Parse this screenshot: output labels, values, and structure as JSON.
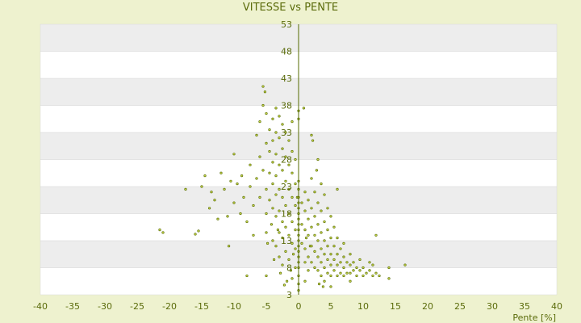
{
  "chart_data": {
    "type": "scatter",
    "title": "VITESSE vs PENTE",
    "xlabel": "Pente [%]",
    "ylabel": "",
    "xlim": [
      -40,
      40
    ],
    "ylim": [
      3,
      53
    ],
    "x_ticks": [
      -40,
      -35,
      -30,
      -25,
      -20,
      -15,
      -10,
      -5,
      0,
      5,
      10,
      15,
      20,
      25,
      30,
      35,
      40
    ],
    "y_ticks": [
      3,
      8,
      13,
      18,
      23,
      28,
      33,
      38,
      43,
      48,
      53
    ],
    "grid": "horizontal bands",
    "legend": "none",
    "series": [
      {
        "values_xy": [
          [
            -21.5,
            15.0
          ],
          [
            -21.0,
            14.5
          ],
          [
            -17.5,
            22.5
          ],
          [
            -16.0,
            14.2
          ],
          [
            -15.5,
            14.8
          ],
          [
            -15.0,
            23.0
          ],
          [
            -14.5,
            25.0
          ],
          [
            -13.8,
            19.0
          ],
          [
            -13.5,
            22.0
          ],
          [
            -13.0,
            20.5
          ],
          [
            -12.5,
            17.0
          ],
          [
            -12.0,
            25.5
          ],
          [
            -11.5,
            22.5
          ],
          [
            -11.0,
            17.5
          ],
          [
            -10.8,
            12.0
          ],
          [
            -10.5,
            24.0
          ],
          [
            -10.0,
            29.0
          ],
          [
            -10.0,
            20.0
          ],
          [
            -9.5,
            23.5
          ],
          [
            -9.0,
            18.0
          ],
          [
            -8.8,
            25.0
          ],
          [
            -8.5,
            21.0
          ],
          [
            -8.0,
            6.5
          ],
          [
            -8.0,
            16.5
          ],
          [
            -7.5,
            27.0
          ],
          [
            -7.5,
            23.0
          ],
          [
            -7.0,
            19.5
          ],
          [
            -7.0,
            14.0
          ],
          [
            -6.5,
            32.5
          ],
          [
            -6.5,
            24.5
          ],
          [
            -6.0,
            35.0
          ],
          [
            -6.0,
            28.5
          ],
          [
            -6.0,
            21.0
          ],
          [
            -5.5,
            41.5
          ],
          [
            -5.5,
            38.0
          ],
          [
            -5.5,
            26.0
          ],
          [
            -5.2,
            40.5
          ],
          [
            -5.0,
            36.5
          ],
          [
            -5.0,
            31.0
          ],
          [
            -5.0,
            22.5
          ],
          [
            -5.0,
            18.0
          ],
          [
            -5.0,
            14.5
          ],
          [
            -5.0,
            6.5
          ],
          [
            -4.8,
            12.5
          ],
          [
            -4.5,
            33.5
          ],
          [
            -4.5,
            29.5
          ],
          [
            -4.5,
            25.5
          ],
          [
            -4.5,
            20.5
          ],
          [
            -4.2,
            16.0
          ],
          [
            -4.0,
            35.5
          ],
          [
            -4.0,
            31.5
          ],
          [
            -4.0,
            27.5
          ],
          [
            -4.0,
            23.5
          ],
          [
            -4.0,
            19.0
          ],
          [
            -4.0,
            13.0
          ],
          [
            -3.8,
            9.5
          ],
          [
            -3.5,
            37.5
          ],
          [
            -3.5,
            33.0
          ],
          [
            -3.5,
            29.0
          ],
          [
            -3.5,
            25.0
          ],
          [
            -3.5,
            21.5
          ],
          [
            -3.5,
            17.5
          ],
          [
            -3.5,
            12.0
          ],
          [
            -3.2,
            15.0
          ],
          [
            -3.0,
            36.0
          ],
          [
            -3.0,
            32.0
          ],
          [
            -3.0,
            27.0
          ],
          [
            -3.0,
            22.5
          ],
          [
            -3.0,
            18.5
          ],
          [
            -3.0,
            14.5
          ],
          [
            -3.0,
            10.0
          ],
          [
            -2.8,
            7.0
          ],
          [
            -2.5,
            34.5
          ],
          [
            -2.5,
            30.0
          ],
          [
            -2.5,
            26.0
          ],
          [
            -2.5,
            21.0
          ],
          [
            -2.5,
            16.5
          ],
          [
            -2.5,
            13.5
          ],
          [
            -2.5,
            8.5
          ],
          [
            -2.2,
            4.8
          ],
          [
            -2.0,
            33.0
          ],
          [
            -2.0,
            28.5
          ],
          [
            -2.0,
            24.0
          ],
          [
            -2.0,
            19.5
          ],
          [
            -2.0,
            15.5
          ],
          [
            -2.0,
            11.0
          ],
          [
            -1.8,
            5.5
          ],
          [
            -1.5,
            31.5
          ],
          [
            -1.5,
            27.0
          ],
          [
            -1.5,
            22.5
          ],
          [
            -1.5,
            18.0
          ],
          [
            -1.5,
            14.0
          ],
          [
            -1.5,
            9.5
          ],
          [
            -1.2,
            7.5
          ],
          [
            -1.0,
            35.0
          ],
          [
            -1.0,
            29.5
          ],
          [
            -1.0,
            25.5
          ],
          [
            -1.0,
            21.0
          ],
          [
            -1.0,
            16.5
          ],
          [
            -1.0,
            12.5
          ],
          [
            -1.0,
            6.0
          ],
          [
            -0.8,
            10.5
          ],
          [
            -0.5,
            28.0
          ],
          [
            -0.5,
            23.5
          ],
          [
            -0.5,
            19.5
          ],
          [
            -0.5,
            15.0
          ],
          [
            -0.5,
            11.5
          ],
          [
            -0.5,
            8.0
          ],
          [
            -0.2,
            21.0
          ],
          [
            0.0,
            37.0
          ],
          [
            0.0,
            35.5
          ],
          [
            0.0,
            24.0
          ],
          [
            0.0,
            22.5
          ],
          [
            0.0,
            21.0
          ],
          [
            0.0,
            20.0
          ],
          [
            0.0,
            19.0
          ],
          [
            0.0,
            18.0
          ],
          [
            0.0,
            17.0
          ],
          [
            0.0,
            16.0
          ],
          [
            0.0,
            15.0
          ],
          [
            0.0,
            14.0
          ],
          [
            0.0,
            13.0
          ],
          [
            0.0,
            12.0
          ],
          [
            0.0,
            11.0
          ],
          [
            0.0,
            10.0
          ],
          [
            0.0,
            9.0
          ],
          [
            0.0,
            8.0
          ],
          [
            0.0,
            6.5
          ],
          [
            0.0,
            5.0
          ],
          [
            0.0,
            3.8
          ],
          [
            0.5,
            20.0
          ],
          [
            0.5,
            16.0
          ],
          [
            0.5,
            12.5
          ],
          [
            0.8,
            37.5
          ],
          [
            1.0,
            22.0
          ],
          [
            1.0,
            18.5
          ],
          [
            1.0,
            15.0
          ],
          [
            1.0,
            11.5
          ],
          [
            1.0,
            9.0
          ],
          [
            1.0,
            5.5
          ],
          [
            1.2,
            13.5
          ],
          [
            1.5,
            20.5
          ],
          [
            1.5,
            17.0
          ],
          [
            1.5,
            14.0
          ],
          [
            1.5,
            10.0
          ],
          [
            1.5,
            7.5
          ],
          [
            1.8,
            12.0
          ],
          [
            2.0,
            32.5
          ],
          [
            2.0,
            24.5
          ],
          [
            2.0,
            19.0
          ],
          [
            2.0,
            15.5
          ],
          [
            2.0,
            12.0
          ],
          [
            2.0,
            9.0
          ],
          [
            2.2,
            31.5
          ],
          [
            2.5,
            22.0
          ],
          [
            2.5,
            17.5
          ],
          [
            2.5,
            14.0
          ],
          [
            2.5,
            11.0
          ],
          [
            2.5,
            8.0
          ],
          [
            2.8,
            26.0
          ],
          [
            3.0,
            28.0
          ],
          [
            3.0,
            20.0
          ],
          [
            3.0,
            16.0
          ],
          [
            3.0,
            13.0
          ],
          [
            3.0,
            10.0
          ],
          [
            3.0,
            7.5
          ],
          [
            3.2,
            5.0
          ],
          [
            3.5,
            23.5
          ],
          [
            3.5,
            18.5
          ],
          [
            3.5,
            14.5
          ],
          [
            3.5,
            11.5
          ],
          [
            3.5,
            9.0
          ],
          [
            3.5,
            6.5
          ],
          [
            3.8,
            4.5
          ],
          [
            4.0,
            21.5
          ],
          [
            4.0,
            16.5
          ],
          [
            4.0,
            13.0
          ],
          [
            4.0,
            10.5
          ],
          [
            4.0,
            8.0
          ],
          [
            4.0,
            5.5
          ],
          [
            4.5,
            19.0
          ],
          [
            4.5,
            15.0
          ],
          [
            4.5,
            12.0
          ],
          [
            4.5,
            9.5
          ],
          [
            4.5,
            7.0
          ],
          [
            5.0,
            17.5
          ],
          [
            5.0,
            13.5
          ],
          [
            5.0,
            10.5
          ],
          [
            5.0,
            8.5
          ],
          [
            5.0,
            6.5
          ],
          [
            5.0,
            4.5
          ],
          [
            5.5,
            15.5
          ],
          [
            5.5,
            12.0
          ],
          [
            5.5,
            9.5
          ],
          [
            5.5,
            7.5
          ],
          [
            6.0,
            22.5
          ],
          [
            6.0,
            13.5
          ],
          [
            6.0,
            10.5
          ],
          [
            6.0,
            8.5
          ],
          [
            6.0,
            6.5
          ],
          [
            6.5,
            11.5
          ],
          [
            6.5,
            9.0
          ],
          [
            6.5,
            7.0
          ],
          [
            7.0,
            12.5
          ],
          [
            7.0,
            10.0
          ],
          [
            7.0,
            8.0
          ],
          [
            7.0,
            6.5
          ],
          [
            7.5,
            9.0
          ],
          [
            7.5,
            7.0
          ],
          [
            8.0,
            10.5
          ],
          [
            8.0,
            8.5
          ],
          [
            8.0,
            7.0
          ],
          [
            8.0,
            5.5
          ],
          [
            8.5,
            9.0
          ],
          [
            8.5,
            7.5
          ],
          [
            9.0,
            8.0
          ],
          [
            9.0,
            6.5
          ],
          [
            9.5,
            9.5
          ],
          [
            9.5,
            7.5
          ],
          [
            10.0,
            8.0
          ],
          [
            10.0,
            6.5
          ],
          [
            10.5,
            7.0
          ],
          [
            11.0,
            9.0
          ],
          [
            11.0,
            7.5
          ],
          [
            11.5,
            8.5
          ],
          [
            11.5,
            6.5
          ],
          [
            12.0,
            7.0
          ],
          [
            12.5,
            6.5
          ],
          [
            12.0,
            14.0
          ],
          [
            14.0,
            8.0
          ],
          [
            14.0,
            6.0
          ],
          [
            16.5,
            8.5
          ]
        ]
      }
    ]
  }
}
